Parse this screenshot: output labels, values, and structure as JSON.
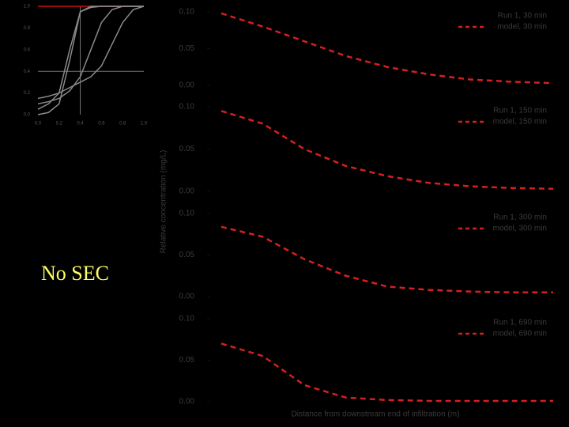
{
  "caption": "No SEC",
  "chart_data": [
    {
      "type": "line",
      "xlim": [
        0,
        1
      ],
      "ylim": [
        0,
        1
      ],
      "xticks": [
        {
          "value": 0,
          "label": "0.0"
        },
        0.2,
        0.4,
        0.6,
        0.8,
        {
          "value": 1,
          "label": "1.0"
        }
      ],
      "yticks": [
        {
          "value": 0,
          "label": "0.0"
        },
        0.2,
        0.4,
        0.6,
        0.8,
        {
          "value": 1,
          "label": "1.0"
        }
      ],
      "x": [
        0,
        0.1,
        0.2,
        0.3,
        0.4,
        0.5,
        0.6,
        0.7,
        0.8,
        0.9,
        1
      ],
      "guide_lines": [
        0.4,
        0.4
      ],
      "guide_color": "#777",
      "reference_line": 1,
      "reference_color": "#cc1111",
      "series": [
        {
          "color": "#8a8a8a",
          "values": [
            0,
            0.02,
            0.1,
            0.5,
            0.95,
            1,
            1,
            1,
            1,
            1,
            1
          ]
        },
        {
          "color": "#8a8a8a",
          "values": [
            0.05,
            0.1,
            0.2,
            0.6,
            0.95,
            0.99,
            1,
            1,
            1,
            1,
            1
          ]
        },
        {
          "color": "#8a8a8a",
          "values": [
            0.1,
            0.12,
            0.15,
            0.22,
            0.35,
            0.6,
            0.85,
            0.97,
            1,
            1,
            1
          ]
        },
        {
          "color": "#8a8a8a",
          "values": [
            0.15,
            0.17,
            0.2,
            0.25,
            0.3,
            0.35,
            0.45,
            0.65,
            0.85,
            0.97,
            1
          ]
        }
      ]
    },
    {
      "type": "line",
      "ylim": [
        0,
        0.1
      ],
      "annotation": "Run 1, 30 min",
      "yticks": [
        {
          "value": 0.1,
          "label": "0.10"
        },
        0.05,
        {
          "value": 0,
          "label": "0.00"
        }
      ],
      "series": [
        {
          "name": "model, 30 min",
          "color": "#d42020",
          "values": [
            0.098,
            0.08,
            0.06,
            0.04,
            0.025,
            0.015,
            0.008,
            0.005,
            0.003
          ]
        }
      ]
    },
    {
      "type": "line",
      "ylim": [
        0,
        0.1
      ],
      "annotation": "Run 1, 150 min",
      "y_label": "Relative concentration (mg/L)",
      "yticks": [
        {
          "value": 0.1,
          "label": "0.10"
        },
        0.05,
        {
          "value": 0,
          "label": "0.00"
        }
      ],
      "series": [
        {
          "name": "model, 150 min",
          "color": "#d42020",
          "values": [
            0.095,
            0.08,
            0.05,
            0.03,
            0.018,
            0.01,
            0.006,
            0.004,
            0.003
          ]
        }
      ]
    },
    {
      "type": "line",
      "ylim": [
        0,
        0.1
      ],
      "annotation": "Run 1, 300 min",
      "yticks": [
        {
          "value": 0.1,
          "label": "0.10"
        },
        0.05,
        {
          "value": 0,
          "label": "0.00"
        }
      ],
      "series": [
        {
          "name": "model, 300 min",
          "color": "#d42020",
          "values": [
            0.084,
            0.072,
            0.045,
            0.025,
            0.012,
            0.008,
            0.006,
            0.005,
            0.005
          ]
        }
      ]
    },
    {
      "type": "line",
      "ylim": [
        0,
        0.1
      ],
      "annotation": "Run 1, 690 min",
      "x_label": "Distance from downstream end of infiltration (m)",
      "yticks": [
        {
          "value": 0.1,
          "label": "0.10"
        },
        0.05,
        {
          "value": 0,
          "label": "0.00"
        }
      ],
      "series": [
        {
          "name": "model, 690 min",
          "color": "#d42020",
          "values": [
            0.07,
            0.055,
            0.02,
            0.005,
            0.002,
            0.001,
            0.001,
            0.001,
            0.001
          ]
        }
      ]
    }
  ]
}
